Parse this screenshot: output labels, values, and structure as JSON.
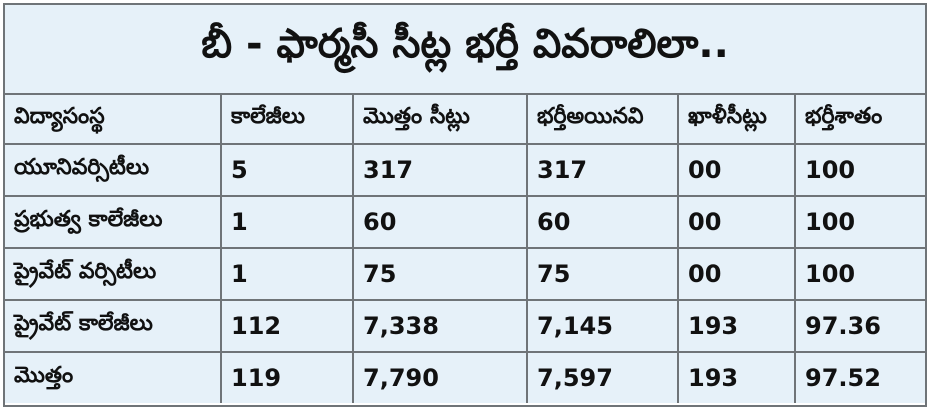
{
  "title": "బీ - ఫార్మసీ సీట్ల భర్తీ వివరాలిలా..",
  "headers": [
    "విద్యాసంస్థ",
    "కాలేజీలు",
    "మొత్తం సీట్లు",
    "భర్తీఅయినవి",
    "ఖాళీసీట్లు",
    "భర్తీశాతం"
  ],
  "rows": [
    {
      "institution": "యూనివర్సిటీలు",
      "colleges": "5",
      "total_seats": "317",
      "filled": "317",
      "vacant": "00",
      "percent": "100"
    },
    {
      "institution": "ప్రభుత్వ కాలేజీలు",
      "colleges": "1",
      "total_seats": "60",
      "filled": "60",
      "vacant": "00",
      "percent": "100"
    },
    {
      "institution": "ప్రైవేట్ వర్సిటీలు",
      "colleges": "1",
      "total_seats": "75",
      "filled": "75",
      "vacant": "00",
      "percent": "100"
    },
    {
      "institution": "ప్రైవేట్ కాలేజీలు",
      "colleges": "112",
      "total_seats": "7,338",
      "filled": "7,145",
      "vacant": "193",
      "percent": "97.36"
    },
    {
      "institution": "మొత్తం",
      "colleges": "119",
      "total_seats": "7,790",
      "filled": "7,597",
      "vacant": "193",
      "percent": "97.52"
    }
  ]
}
